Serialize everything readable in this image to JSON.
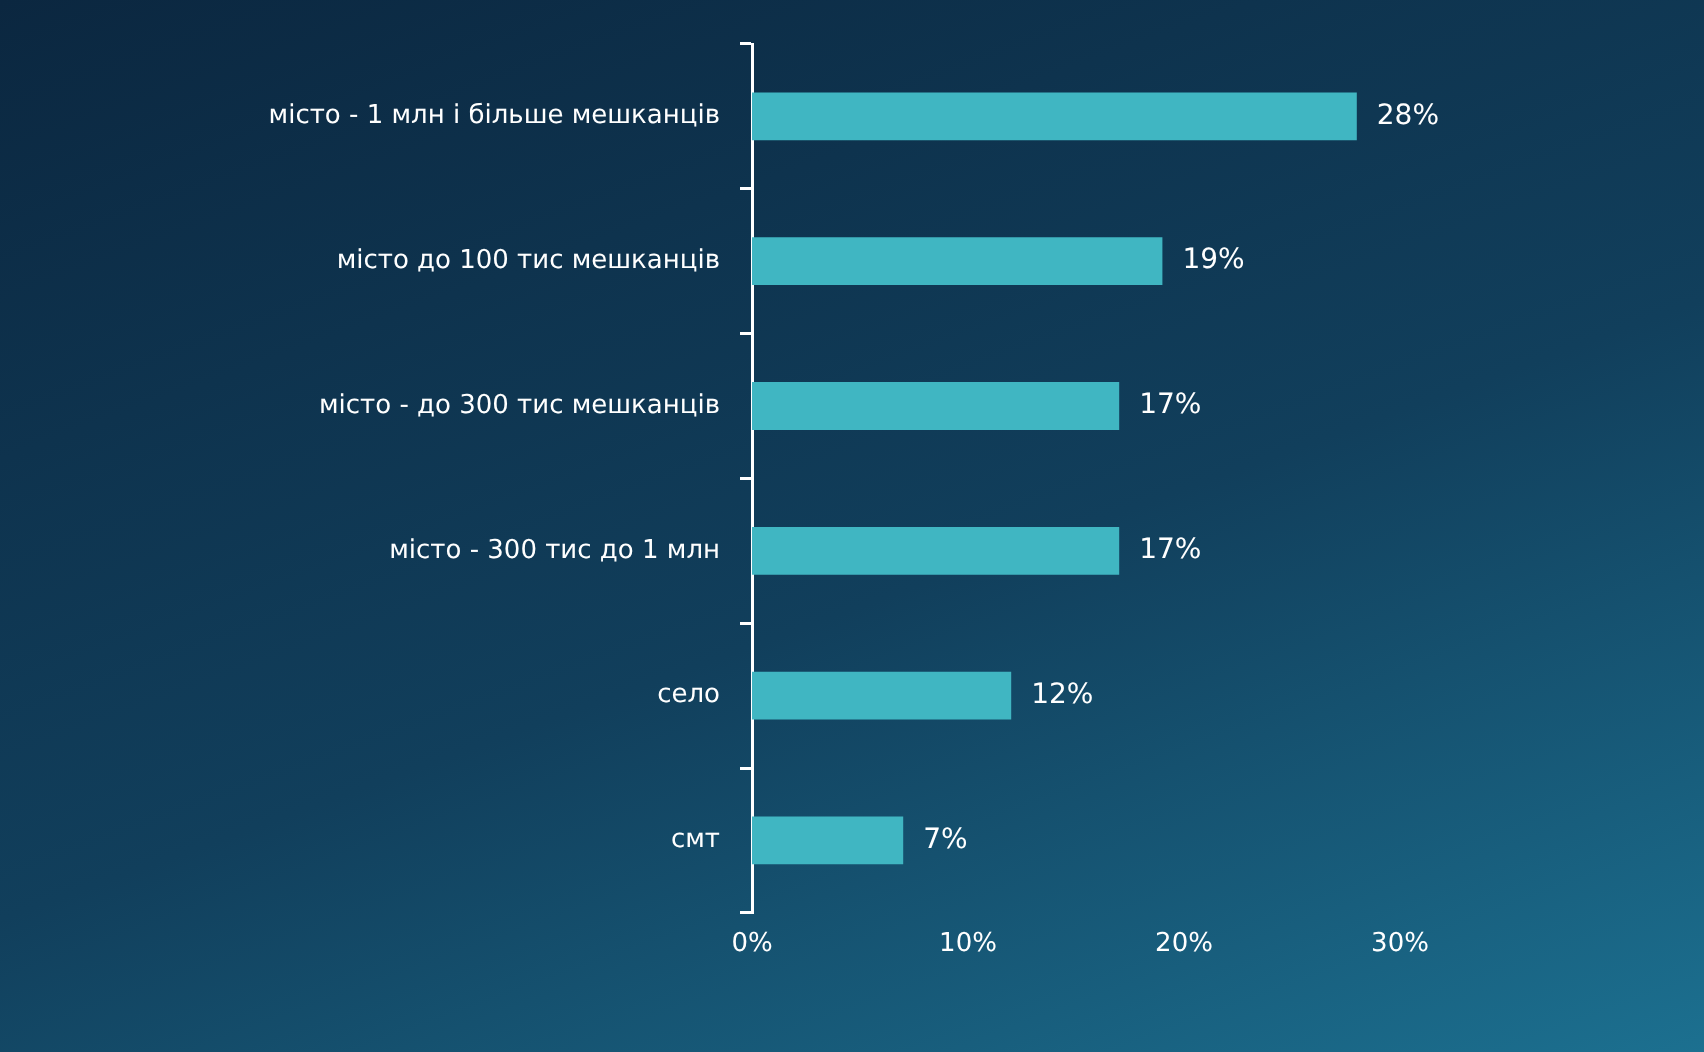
{
  "chart_data": {
    "type": "bar",
    "orientation": "horizontal",
    "categories": [
      "місто - 1 млн і більше мешканців",
      "місто до 100 тис мешканців",
      "місто - до 300 тис мешканців",
      "місто - 300 тис до 1 млн",
      "село",
      "смт"
    ],
    "values": [
      28,
      19,
      17,
      17,
      12,
      7
    ],
    "value_labels": [
      "28%",
      "19%",
      "17%",
      "17%",
      "12%",
      "7%"
    ],
    "color": "#40b6c2",
    "xlim": [
      0,
      30
    ],
    "xticks": [
      {
        "value": 0,
        "label": "0%"
      },
      {
        "value": 10,
        "label": "10%"
      },
      {
        "value": 20,
        "label": "20%"
      },
      {
        "value": 30,
        "label": "30%"
      }
    ],
    "grid": false,
    "legend": false
  }
}
